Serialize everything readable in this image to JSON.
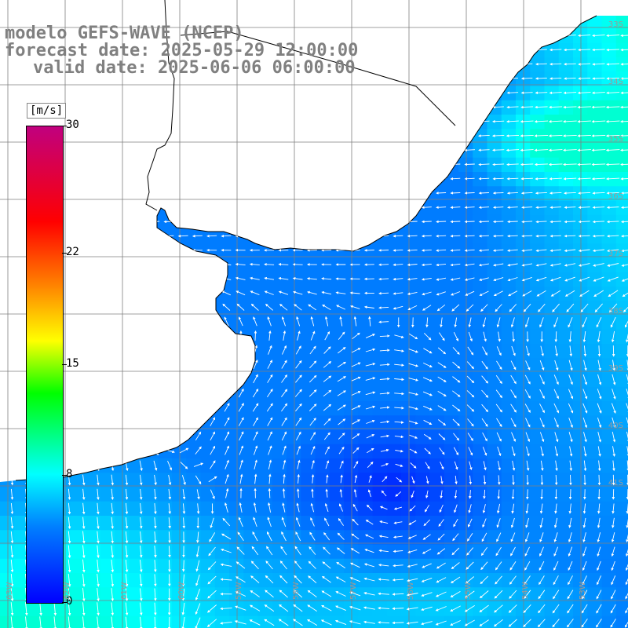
{
  "header": {
    "line1": "modelo GEFS-WAVE (NCEP)",
    "line2": "forecast date: 2025-05-29 12:00:00",
    "line3": "valid date: 2025-06-06 06:00:00"
  },
  "colorbar": {
    "unit": "[m/s]",
    "ticks": [
      {
        "value": 30,
        "label": "30"
      },
      {
        "value": 22,
        "label": "22"
      },
      {
        "value": 15,
        "label": "15"
      },
      {
        "value": 8,
        "label": "8"
      },
      {
        "value": 0,
        "label": "0"
      }
    ],
    "min": 0,
    "max": 30,
    "colors": [
      "#0000ff",
      "#007fff",
      "#00ffff",
      "#00ff00",
      "#ffff00",
      "#ff7f00",
      "#ff0000",
      "#c0007f"
    ]
  },
  "map": {
    "land_color": "#ffffff",
    "grid_color": "#7f7f7f",
    "coast_color": "#000000",
    "arrow_color": "#ffffff"
  },
  "lat_labels": [
    "33S",
    "34S",
    "35S",
    "36S",
    "37S",
    "38S",
    "39S",
    "40S",
    "41S"
  ],
  "lon_labels": [
    "63W",
    "62W",
    "61W",
    "60W",
    "59W",
    "58W",
    "57W",
    "56W",
    "55W",
    "54W",
    "53W"
  ]
}
